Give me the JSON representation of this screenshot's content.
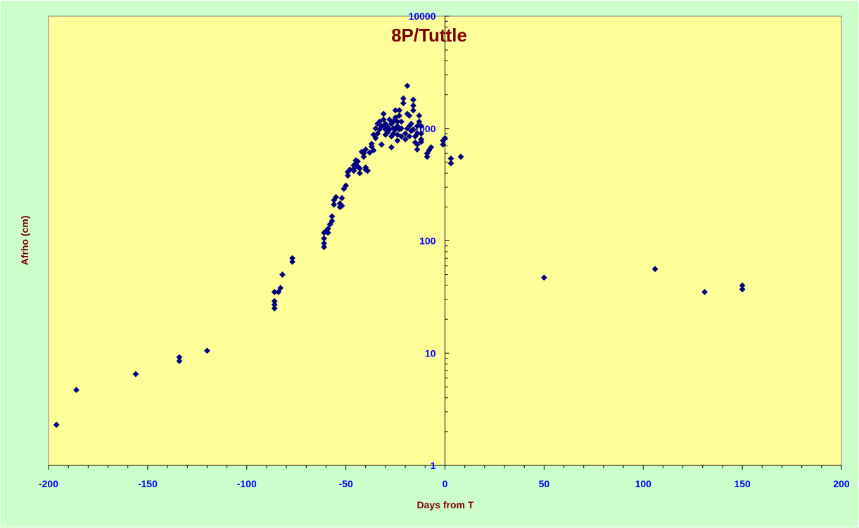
{
  "chart_data": {
    "type": "scatter",
    "title": "8P/Tuttle",
    "xlabel": "Days from T",
    "ylabel": "Afrho (cm)",
    "xlim": [
      -200,
      200
    ],
    "ylim": [
      1,
      10000
    ],
    "yscale": "log",
    "xticks": [
      "-200",
      "-150",
      "-100",
      "-50",
      "0",
      "50",
      "100",
      "150",
      "200"
    ],
    "yticks": [
      "1",
      "10",
      "100",
      "1000",
      "10000"
    ],
    "grid": false,
    "legend": "none",
    "colors": {
      "background": "#ccffcc",
      "plot_area": "#ffff99",
      "marker": "#000080",
      "title": "#800000",
      "axis_title": "#800000",
      "tick_label": "#0000ff"
    },
    "points": [
      [
        -196,
        2.3
      ],
      [
        -186,
        4.7
      ],
      [
        -156,
        6.5
      ],
      [
        -134,
        8.5
      ],
      [
        -134,
        9.2
      ],
      [
        -120,
        10.5
      ],
      [
        -86,
        25
      ],
      [
        -86,
        27
      ],
      [
        -86,
        29
      ],
      [
        -86,
        35
      ],
      [
        -84,
        35
      ],
      [
        -83,
        38
      ],
      [
        -82,
        50
      ],
      [
        -77,
        65
      ],
      [
        -77,
        70
      ],
      [
        -61,
        88
      ],
      [
        -61,
        95
      ],
      [
        -61,
        105
      ],
      [
        -61,
        118
      ],
      [
        -60,
        122
      ],
      [
        -59,
        118
      ],
      [
        -59,
        128
      ],
      [
        -58,
        140
      ],
      [
        -57,
        150
      ],
      [
        -57,
        165
      ],
      [
        -56,
        210
      ],
      [
        -56,
        230
      ],
      [
        -55,
        245
      ],
      [
        -53,
        200
      ],
      [
        -53,
        215
      ],
      [
        -52,
        205
      ],
      [
        -52,
        240
      ],
      [
        -51,
        290
      ],
      [
        -50,
        310
      ],
      [
        -49,
        380
      ],
      [
        -49,
        410
      ],
      [
        -48,
        430
      ],
      [
        -46,
        420
      ],
      [
        -46,
        440
      ],
      [
        -46,
        470
      ],
      [
        -45,
        490
      ],
      [
        -45,
        520
      ],
      [
        -44,
        460
      ],
      [
        -44,
        510
      ],
      [
        -43,
        400
      ],
      [
        -43,
        440
      ],
      [
        -42,
        620
      ],
      [
        -41,
        560
      ],
      [
        -41,
        600
      ],
      [
        -40,
        430
      ],
      [
        -40,
        450
      ],
      [
        -40,
        650
      ],
      [
        -39,
        420
      ],
      [
        -38,
        610
      ],
      [
        -37,
        690
      ],
      [
        -37,
        730
      ],
      [
        -36,
        640
      ],
      [
        -36,
        880
      ],
      [
        -35,
        820
      ],
      [
        -35,
        1000
      ],
      [
        -34,
        900
      ],
      [
        -34,
        1100
      ],
      [
        -33,
        980
      ],
      [
        -33,
        1150
      ],
      [
        -32,
        720
      ],
      [
        -32,
        1050
      ],
      [
        -31,
        1050
      ],
      [
        -31,
        1200
      ],
      [
        -31,
        1350
      ],
      [
        -30,
        880
      ],
      [
        -30,
        980
      ],
      [
        -30,
        1100
      ],
      [
        -29,
        920
      ],
      [
        -29,
        1040
      ],
      [
        -28,
        980
      ],
      [
        -28,
        1200
      ],
      [
        -27,
        680
      ],
      [
        -27,
        850
      ],
      [
        -27,
        1100
      ],
      [
        -26,
        900
      ],
      [
        -26,
        1000
      ],
      [
        -26,
        1150
      ],
      [
        -25,
        980
      ],
      [
        -25,
        1250
      ],
      [
        -25,
        1450
      ],
      [
        -24,
        780
      ],
      [
        -24,
        880
      ],
      [
        -24,
        1050
      ],
      [
        -24,
        1150
      ],
      [
        -23,
        980
      ],
      [
        -23,
        1300
      ],
      [
        -23,
        1450
      ],
      [
        -22,
        850
      ],
      [
        -22,
        1000
      ],
      [
        -22,
        1150
      ],
      [
        -21,
        1680
      ],
      [
        -21,
        1850
      ],
      [
        -20,
        800
      ],
      [
        -20,
        900
      ],
      [
        -19,
        1000
      ],
      [
        -19,
        1350
      ],
      [
        -19,
        2400
      ],
      [
        -18,
        850
      ],
      [
        -18,
        1050
      ],
      [
        -18,
        1300
      ],
      [
        -17,
        950
      ],
      [
        -17,
        1100
      ],
      [
        -16,
        980
      ],
      [
        -16,
        1450
      ],
      [
        -16,
        1600
      ],
      [
        -16,
        1800
      ],
      [
        -15,
        750
      ],
      [
        -15,
        850
      ],
      [
        -14,
        650
      ],
      [
        -14,
        720
      ],
      [
        -14,
        900
      ],
      [
        -14,
        1050
      ],
      [
        -13,
        1150
      ],
      [
        -13,
        1300
      ],
      [
        -12,
        760
      ],
      [
        -12,
        800
      ],
      [
        -12,
        900
      ],
      [
        -12,
        1050
      ],
      [
        -9,
        560
      ],
      [
        -9,
        600
      ],
      [
        -8,
        640
      ],
      [
        -7,
        680
      ],
      [
        -1,
        720
      ],
      [
        -1,
        780
      ],
      [
        0,
        820
      ],
      [
        3,
        490
      ],
      [
        3,
        540
      ],
      [
        8,
        560
      ],
      [
        50,
        47
      ],
      [
        106,
        56
      ],
      [
        131,
        35
      ],
      [
        150,
        37
      ],
      [
        150,
        40
      ]
    ]
  }
}
